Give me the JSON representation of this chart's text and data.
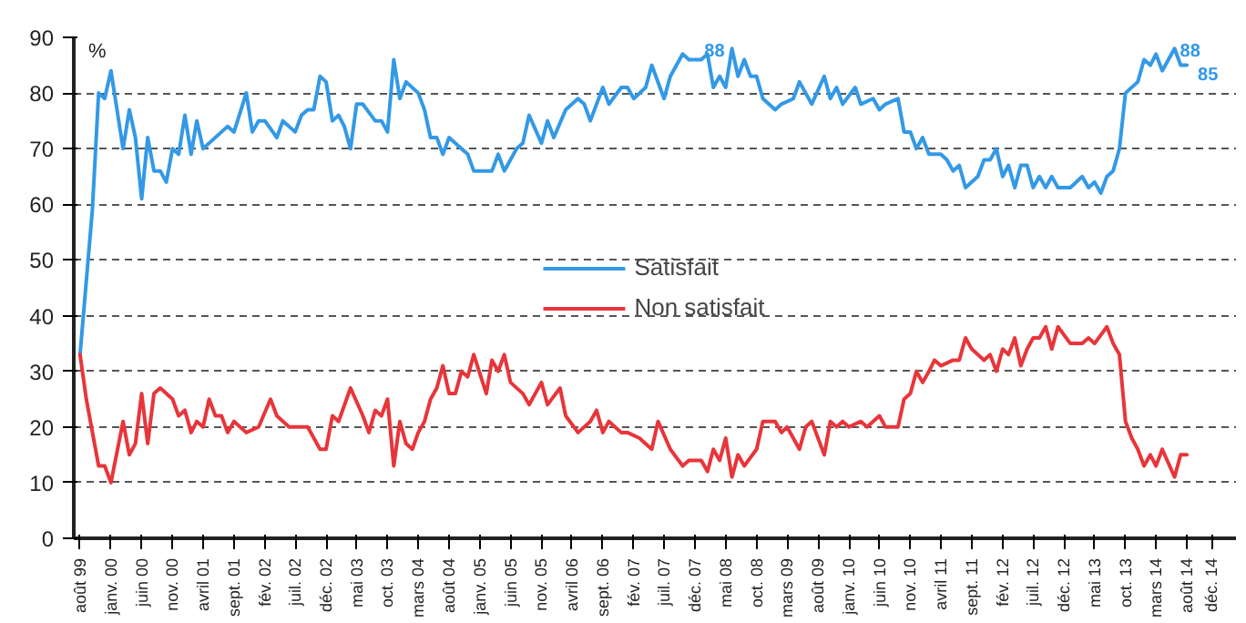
{
  "chart_data": {
    "type": "line",
    "ylabel": "%",
    "xlim": [
      "1999-07",
      "2015-04"
    ],
    "ylim": [
      0,
      90
    ],
    "yticks": [
      0,
      10,
      20,
      30,
      40,
      50,
      60,
      70,
      80,
      90
    ],
    "xticks": [
      {
        "value": "1999-08",
        "label": "août 99"
      },
      {
        "value": "2000-01",
        "label": "janv. 00"
      },
      {
        "value": "2000-06",
        "label": "juin 00"
      },
      {
        "value": "2000-11",
        "label": "nov. 00"
      },
      {
        "value": "2001-04",
        "label": "avril 01"
      },
      {
        "value": "2001-09",
        "label": "sept. 01"
      },
      {
        "value": "2002-02",
        "label": "fév. 02"
      },
      {
        "value": "2002-07",
        "label": "juil. 02"
      },
      {
        "value": "2002-12",
        "label": "déc. 02"
      },
      {
        "value": "2003-05",
        "label": "mai 03"
      },
      {
        "value": "2003-10",
        "label": "oct. 03"
      },
      {
        "value": "2004-03",
        "label": "mars 04"
      },
      {
        "value": "2004-08",
        "label": "août 04"
      },
      {
        "value": "2005-01",
        "label": "janv. 05"
      },
      {
        "value": "2005-06",
        "label": "juin 05"
      },
      {
        "value": "2005-11",
        "label": "nov. 05"
      },
      {
        "value": "2006-04",
        "label": "avril 06"
      },
      {
        "value": "2006-09",
        "label": "sept. 06"
      },
      {
        "value": "2007-02",
        "label": "fév. 07"
      },
      {
        "value": "2007-07",
        "label": "juil. 07"
      },
      {
        "value": "2007-12",
        "label": "déc. 07"
      },
      {
        "value": "2008-05",
        "label": "mai 08"
      },
      {
        "value": "2008-10",
        "label": "oct. 08"
      },
      {
        "value": "2009-03",
        "label": "mars 09"
      },
      {
        "value": "2009-08",
        "label": "août 09"
      },
      {
        "value": "2010-01",
        "label": "janv. 10"
      },
      {
        "value": "2010-06",
        "label": "juin 10"
      },
      {
        "value": "2010-11",
        "label": "nov. 10"
      },
      {
        "value": "2011-04",
        "label": "avril 11"
      },
      {
        "value": "2011-09",
        "label": "sept. 11"
      },
      {
        "value": "2012-02",
        "label": "fév. 12"
      },
      {
        "value": "2012-07",
        "label": "juil. 12"
      },
      {
        "value": "2012-12",
        "label": "déc. 12"
      },
      {
        "value": "2013-05",
        "label": "mai 13"
      },
      {
        "value": "2013-10",
        "label": "oct. 13"
      },
      {
        "value": "2014-03",
        "label": "mars 14"
      },
      {
        "value": "2014-08",
        "label": "août 14"
      },
      {
        "value": "2014-12",
        "label": "déc. 14"
      }
    ],
    "grid": "y",
    "legend": "center",
    "line_style": "solid",
    "annotations": [
      {
        "text": "88",
        "x": "2008-06",
        "y": 88
      },
      {
        "text": "88",
        "x": "2014-06",
        "y": 88
      },
      {
        "text": "85",
        "x": "2014-08",
        "y": 85
      }
    ],
    "series": [
      {
        "name": "Satisfait",
        "color": "#3399e6",
        "x": [
          "1999-08",
          "1999-10",
          "1999-11",
          "1999-12",
          "2000-01",
          "2000-03",
          "2000-04",
          "2000-05",
          "2000-06",
          "2000-07",
          "2000-08",
          "2000-09",
          "2000-10",
          "2000-11",
          "2000-12",
          "2001-01",
          "2001-02",
          "2001-03",
          "2001-04",
          "2001-05",
          "2001-07",
          "2001-08",
          "2001-09",
          "2001-11",
          "2001-12",
          "2002-01",
          "2002-02",
          "2002-04",
          "2002-05",
          "2002-07",
          "2002-08",
          "2002-09",
          "2002-10",
          "2002-11",
          "2002-12",
          "2003-01",
          "2003-02",
          "2003-03",
          "2003-04",
          "2003-05",
          "2003-06",
          "2003-08",
          "2003-09",
          "2003-10",
          "2003-11",
          "2003-12",
          "2004-01",
          "2004-03",
          "2004-04",
          "2004-05",
          "2004-06",
          "2004-07",
          "2004-08",
          "2004-10",
          "2004-11",
          "2004-12",
          "2005-01",
          "2005-03",
          "2005-04",
          "2005-05",
          "2005-07",
          "2005-08",
          "2005-09",
          "2005-11",
          "2005-12",
          "2006-01",
          "2006-03",
          "2006-05",
          "2006-06",
          "2006-07",
          "2006-09",
          "2006-10",
          "2006-12",
          "2007-01",
          "2007-02",
          "2007-04",
          "2007-05",
          "2007-07",
          "2007-08",
          "2007-10",
          "2007-11",
          "2008-01",
          "2008-02",
          "2008-03",
          "2008-04",
          "2008-05",
          "2008-06",
          "2008-07",
          "2008-08",
          "2008-09",
          "2008-10",
          "2008-11",
          "2009-01",
          "2009-02",
          "2009-04",
          "2009-05",
          "2009-07",
          "2009-09",
          "2009-10",
          "2009-11",
          "2009-12",
          "2010-02",
          "2010-03",
          "2010-05",
          "2010-06",
          "2010-07",
          "2010-09",
          "2010-10",
          "2010-11",
          "2010-12",
          "2011-01",
          "2011-02",
          "2011-04",
          "2011-05",
          "2011-06",
          "2011-07",
          "2011-08",
          "2011-10",
          "2011-11",
          "2011-12",
          "2012-01",
          "2012-02",
          "2012-03",
          "2012-04",
          "2012-05",
          "2012-06",
          "2012-07",
          "2012-08",
          "2012-09",
          "2012-10",
          "2012-11",
          "2013-01",
          "2013-03",
          "2013-04",
          "2013-05",
          "2013-06",
          "2013-07",
          "2013-08",
          "2013-09",
          "2013-10",
          "2013-12",
          "2014-01",
          "2014-02",
          "2014-03",
          "2014-04",
          "2014-06",
          "2014-07",
          "2014-08"
        ],
        "values": [
          33,
          59,
          80,
          79,
          84,
          70,
          77,
          72,
          61,
          72,
          66,
          66,
          64,
          70,
          69,
          76,
          69,
          75,
          70,
          71,
          73,
          74,
          73,
          80,
          73,
          75,
          75,
          72,
          75,
          73,
          76,
          77,
          77,
          83,
          82,
          75,
          76,
          74,
          70,
          78,
          78,
          75,
          75,
          73,
          86,
          79,
          82,
          80,
          77,
          72,
          72,
          69,
          72,
          70,
          69,
          66,
          66,
          66,
          69,
          66,
          70,
          71,
          76,
          71,
          75,
          72,
          77,
          79,
          78,
          75,
          81,
          78,
          81,
          81,
          79,
          81,
          85,
          79,
          83,
          87,
          86,
          86,
          87,
          81,
          83,
          81,
          88,
          83,
          86,
          83,
          83,
          79,
          77,
          78,
          79,
          82,
          78,
          83,
          79,
          81,
          78,
          81,
          78,
          79,
          77,
          78,
          79,
          73,
          73,
          70,
          72,
          69,
          69,
          68,
          66,
          67,
          63,
          65,
          68,
          68,
          70,
          65,
          67,
          63,
          67,
          67,
          63,
          65,
          63,
          65,
          63,
          63,
          65,
          63,
          64,
          62,
          65,
          66,
          70,
          80,
          82,
          86,
          85,
          87,
          84,
          88,
          85,
          85
        ]
      },
      {
        "name": "Non satisfait",
        "color": "#e8353a",
        "x": [
          "1999-08",
          "1999-09",
          "1999-11",
          "1999-12",
          "2000-01",
          "2000-03",
          "2000-04",
          "2000-05",
          "2000-06",
          "2000-07",
          "2000-08",
          "2000-09",
          "2000-11",
          "2000-12",
          "2001-01",
          "2001-02",
          "2001-03",
          "2001-04",
          "2001-05",
          "2001-06",
          "2001-07",
          "2001-08",
          "2001-09",
          "2001-11",
          "2002-01",
          "2002-03",
          "2002-04",
          "2002-06",
          "2002-09",
          "2002-11",
          "2002-12",
          "2003-01",
          "2003-02",
          "2003-04",
          "2003-06",
          "2003-07",
          "2003-08",
          "2003-09",
          "2003-10",
          "2003-11",
          "2003-12",
          "2004-01",
          "2004-02",
          "2004-03",
          "2004-04",
          "2004-05",
          "2004-06",
          "2004-07",
          "2004-08",
          "2004-09",
          "2004-10",
          "2004-11",
          "2004-12",
          "2005-02",
          "2005-03",
          "2005-04",
          "2005-05",
          "2005-06",
          "2005-08",
          "2005-09",
          "2005-11",
          "2005-12",
          "2006-02",
          "2006-03",
          "2006-05",
          "2006-07",
          "2006-08",
          "2006-09",
          "2006-10",
          "2006-12",
          "2007-01",
          "2007-03",
          "2007-05",
          "2007-06",
          "2007-08",
          "2007-10",
          "2007-11",
          "2008-01",
          "2008-02",
          "2008-03",
          "2008-04",
          "2008-05",
          "2008-06",
          "2008-07",
          "2008-08",
          "2008-10",
          "2008-11",
          "2009-01",
          "2009-02",
          "2009-03",
          "2009-05",
          "2009-06",
          "2009-07",
          "2009-09",
          "2009-10",
          "2009-11",
          "2009-12",
          "2010-01",
          "2010-03",
          "2010-04",
          "2010-06",
          "2010-07",
          "2010-09",
          "2010-10",
          "2010-11",
          "2010-12",
          "2011-01",
          "2011-02",
          "2011-03",
          "2011-04",
          "2011-06",
          "2011-07",
          "2011-08",
          "2011-09",
          "2011-10",
          "2011-11",
          "2011-12",
          "2012-01",
          "2012-02",
          "2012-03",
          "2012-04",
          "2012-05",
          "2012-06",
          "2012-07",
          "2012-08",
          "2012-09",
          "2012-10",
          "2012-11",
          "2013-01",
          "2013-03",
          "2013-04",
          "2013-05",
          "2013-07",
          "2013-08",
          "2013-09",
          "2013-10",
          "2013-11",
          "2013-12",
          "2014-01",
          "2014-02",
          "2014-03",
          "2014-04",
          "2014-06",
          "2014-07",
          "2014-08"
        ],
        "values": [
          33,
          25,
          13,
          13,
          10,
          21,
          15,
          17,
          26,
          17,
          26,
          27,
          25,
          22,
          23,
          19,
          21,
          20,
          25,
          22,
          22,
          19,
          21,
          19,
          20,
          25,
          22,
          20,
          20,
          16,
          16,
          22,
          21,
          27,
          22,
          19,
          23,
          22,
          25,
          13,
          21,
          17,
          16,
          19,
          21,
          25,
          27,
          31,
          26,
          26,
          30,
          29,
          33,
          26,
          32,
          30,
          33,
          28,
          26,
          24,
          28,
          24,
          27,
          22,
          19,
          21,
          23,
          19,
          21,
          19,
          19,
          18,
          16,
          21,
          16,
          13,
          14,
          14,
          12,
          16,
          14,
          18,
          11,
          15,
          13,
          16,
          21,
          21,
          19,
          20,
          16,
          20,
          21,
          15,
          21,
          20,
          21,
          20,
          21,
          20,
          22,
          20,
          20,
          25,
          26,
          30,
          28,
          30,
          32,
          31,
          32,
          32,
          36,
          34,
          33,
          32,
          33,
          30,
          34,
          33,
          36,
          31,
          34,
          36,
          36,
          38,
          34,
          38,
          35,
          35,
          36,
          35,
          38,
          35,
          33,
          21,
          18,
          16,
          13,
          15,
          13,
          16,
          11,
          15,
          15
        ]
      }
    ]
  }
}
